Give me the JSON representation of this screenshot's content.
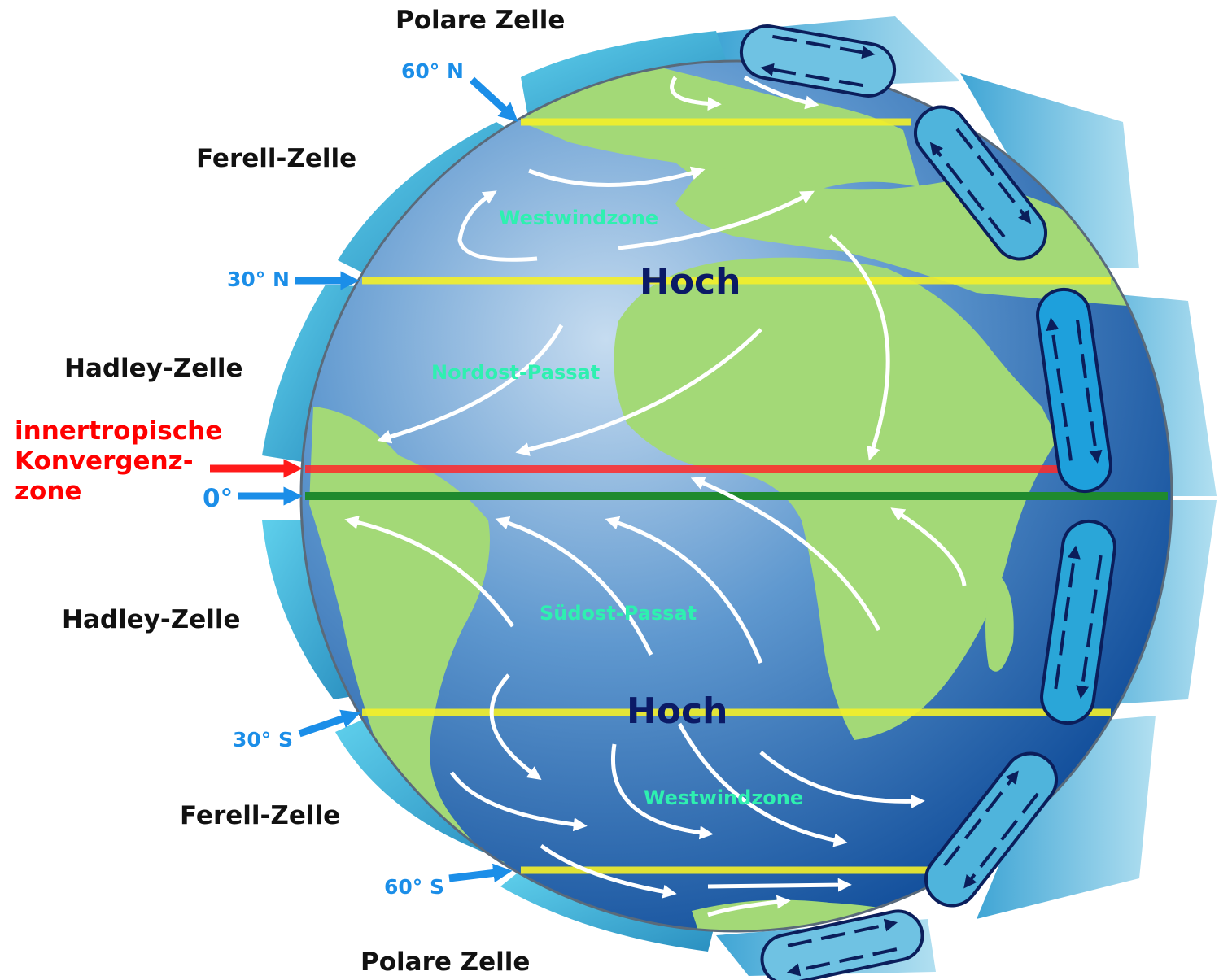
{
  "colors": {
    "ocean_light": "#a9cbe6",
    "ocean_dark": "#0d4f9c",
    "land": "#a3d977",
    "cell_band": "#3fb3d8",
    "cell_loop": "#0b1e5b",
    "latitude_line": "#f4f02a",
    "itcz_line": "#ff2a2a",
    "equator_line": "#1f8a2e",
    "latitude_label": "#1b8ee8",
    "itcz_label": "#ff0000",
    "wind_label": "#2ef0b0",
    "high_label": "#0b1a66",
    "wind_arrow": "#ffffff"
  },
  "cells": {
    "polar_north": "Polare Zelle",
    "ferrel_north": "Ferell-Zelle",
    "hadley_north": "Hadley-Zelle",
    "hadley_south": "Hadley-Zelle",
    "ferrel_south": "Ferell-Zelle",
    "polar_south": "Polare Zelle"
  },
  "latitudes": {
    "n60": "60° N",
    "n30": "30° N",
    "equator": "0°",
    "s30": "30° S",
    "s60": "60° S"
  },
  "itcz": {
    "line1": "innertropische",
    "line2": "Konvergenz-",
    "line3": "zone"
  },
  "winds": {
    "westerlies_north": "Westwindzone",
    "northeast_trades": "Nordost-Passat",
    "southeast_trades": "Südost-Passat",
    "westerlies_south": "Westwindzone"
  },
  "pressure": {
    "high_north": "Hoch",
    "high_south": "Hoch"
  }
}
